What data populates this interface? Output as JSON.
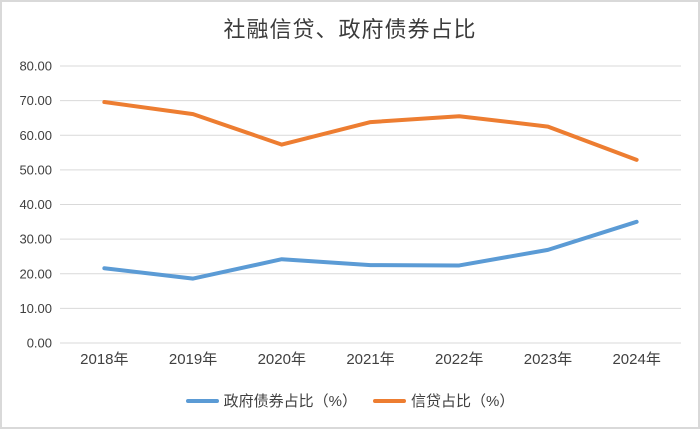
{
  "window": {
    "background_color": "#ffffff",
    "border_color": "#d9d9d9"
  },
  "chart_data": {
    "type": "line",
    "title": "社融信贷、政府债券占比",
    "categories": [
      "2018年",
      "2019年",
      "2020年",
      "2021年",
      "2022年",
      "2023年",
      "2024年"
    ],
    "series": [
      {
        "name": "政府债券占比（%）",
        "color": "#5B9BD5",
        "values": [
          21.6,
          18.6,
          24.2,
          22.5,
          22.4,
          26.9,
          35.0
        ]
      },
      {
        "name": "信贷占比（%）",
        "color": "#ED7D31",
        "values": [
          69.6,
          66.1,
          57.3,
          63.8,
          65.5,
          62.5,
          52.9
        ]
      }
    ],
    "ylim": [
      0,
      80
    ],
    "ytick_step": 10,
    "ytick_labels": [
      "0.00",
      "10.00",
      "20.00",
      "30.00",
      "40.00",
      "50.00",
      "60.00",
      "70.00",
      "80.00"
    ],
    "grid": "horizontal",
    "gridline_color": "#d9d9d9",
    "axis_label_color": "#404040",
    "line_width": 4,
    "legend_position": "bottom"
  }
}
